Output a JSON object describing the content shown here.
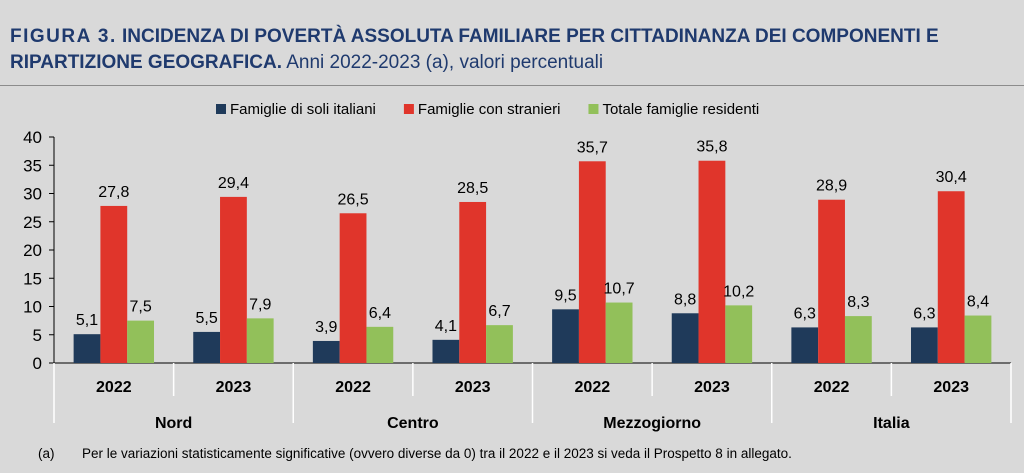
{
  "title": {
    "figure": "FIGURA 3.",
    "main": "INCIDENZA DI POVERTÀ ASSOLUTA FAMILIARE PER CITTADINANZA DEI COMPONENTI E RIPARTIZIONE GEOGRAFICA.",
    "sub": "Anni 2022-2023 (a), valori percentuali"
  },
  "footnote": {
    "mark": "(a)",
    "text": "Per le variazioni statisticamente significative (ovvero diverse da 0) tra il 2022 e il 2023 si veda il Prospetto 8 in allegato."
  },
  "chart_data": {
    "type": "bar",
    "groups": [
      {
        "name": "Nord",
        "years": [
          "2022",
          "2023"
        ]
      },
      {
        "name": "Centro",
        "years": [
          "2022",
          "2023"
        ]
      },
      {
        "name": "Mezzogiorno",
        "years": [
          "2022",
          "2023"
        ]
      },
      {
        "name": "Italia",
        "years": [
          "2022",
          "2023"
        ]
      }
    ],
    "series": [
      {
        "name": "Famiglie di soli italiani",
        "color": "#1f3a5a",
        "values": [
          5.1,
          5.5,
          3.9,
          4.1,
          9.5,
          8.8,
          6.3,
          6.3
        ]
      },
      {
        "name": "Famiglie con stranieri",
        "color": "#e0352b",
        "values": [
          27.8,
          29.4,
          26.5,
          28.5,
          35.7,
          35.8,
          28.9,
          30.4
        ]
      },
      {
        "name": "Totale famiglie residenti",
        "color": "#92c05a",
        "values": [
          7.5,
          7.9,
          6.4,
          6.7,
          10.7,
          10.2,
          8.3,
          8.4
        ]
      }
    ],
    "ylim": [
      0,
      40
    ],
    "yticks": [
      0,
      5,
      10,
      15,
      20,
      25,
      30,
      35,
      40
    ],
    "legend_position": "top",
    "decimal_separator": ","
  }
}
